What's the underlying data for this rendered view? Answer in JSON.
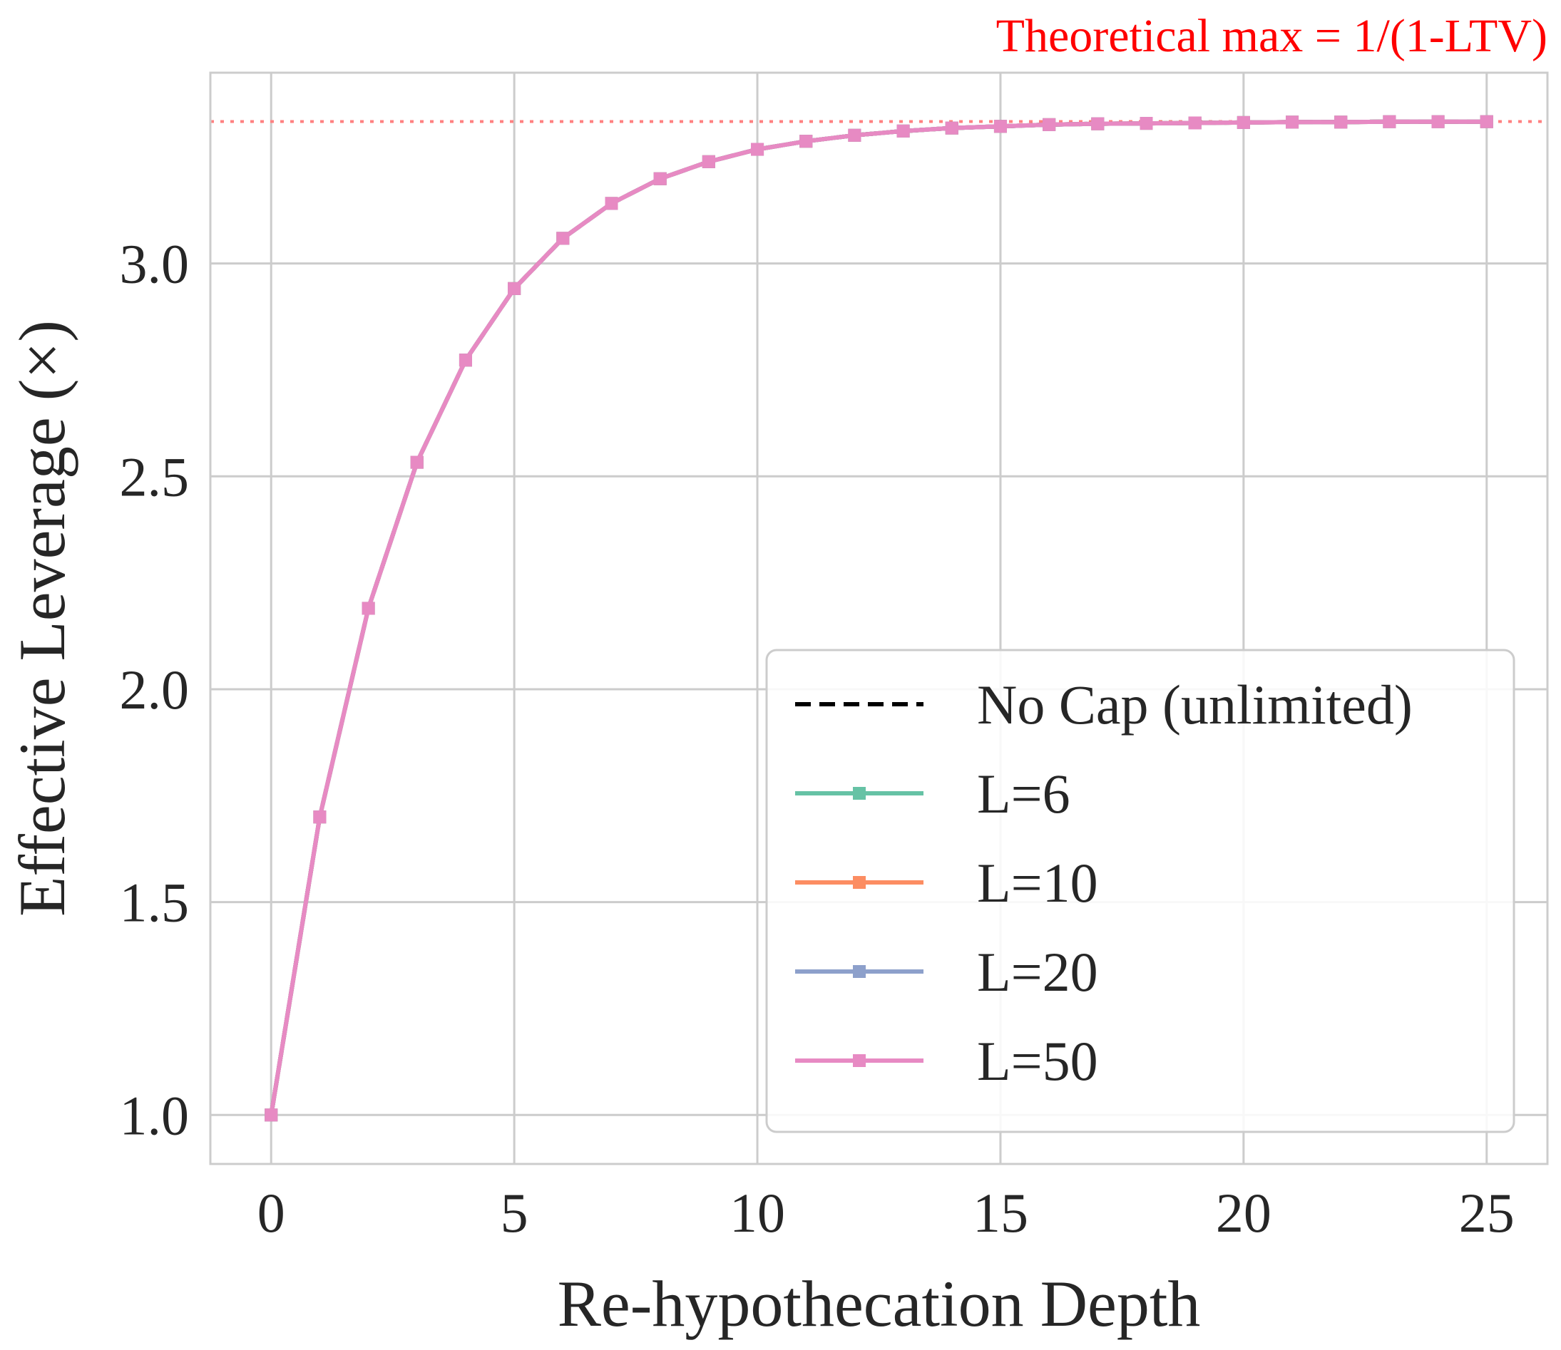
{
  "chart_data": {
    "type": "line",
    "xlabel": "Re-hypothecation Depth",
    "ylabel": "Effective Leverage (×)",
    "xlim": [
      -1.25,
      26.25
    ],
    "ylim": [
      0.885,
      3.448
    ],
    "xticks": [
      0,
      5,
      10,
      15,
      20,
      25
    ],
    "xtick_labels": [
      "0",
      "5",
      "10",
      "15",
      "20",
      "25"
    ],
    "yticks": [
      1.0,
      1.5,
      2.0,
      2.5,
      3.0
    ],
    "ytick_labels": [
      "1.0",
      "1.5",
      "2.0",
      "2.5",
      "3.0"
    ],
    "grid": true,
    "legend_position": "lower-right",
    "reference_line": {
      "y": 3.3333,
      "label": "Theoretical max = 1/(1-LTV)",
      "color": "#ff8080",
      "style": "dotted"
    },
    "x": [
      0,
      1,
      2,
      3,
      4,
      5,
      6,
      7,
      8,
      9,
      10,
      11,
      12,
      13,
      14,
      15,
      16,
      17,
      18,
      19,
      20,
      21,
      22,
      23,
      24,
      25
    ],
    "series": [
      {
        "name": "No Cap (unlimited)",
        "color": "#000000",
        "style": "dashed",
        "marker": "none",
        "values": [
          1.0,
          1.7,
          2.19,
          2.533,
          2.773,
          2.941,
          3.059,
          3.141,
          3.199,
          3.239,
          3.268,
          3.287,
          3.301,
          3.311,
          3.318,
          3.322,
          3.326,
          3.328,
          3.329,
          3.33,
          3.331,
          3.332,
          3.332,
          3.333,
          3.333,
          3.333
        ]
      },
      {
        "name": "L=6",
        "color": "#66c2a5",
        "style": "solid",
        "marker": "square",
        "values": [
          1.0,
          1.7,
          2.19,
          2.533,
          2.773,
          2.941,
          3.059,
          3.141,
          3.199,
          3.239,
          3.268,
          3.287,
          3.301,
          3.311,
          3.318,
          3.322,
          3.326,
          3.328,
          3.329,
          3.33,
          3.331,
          3.332,
          3.332,
          3.333,
          3.333,
          3.333
        ]
      },
      {
        "name": "L=10",
        "color": "#fc8d62",
        "style": "solid",
        "marker": "square",
        "values": [
          1.0,
          1.7,
          2.19,
          2.533,
          2.773,
          2.941,
          3.059,
          3.141,
          3.199,
          3.239,
          3.268,
          3.287,
          3.301,
          3.311,
          3.318,
          3.322,
          3.326,
          3.328,
          3.329,
          3.33,
          3.331,
          3.332,
          3.332,
          3.333,
          3.333,
          3.333
        ]
      },
      {
        "name": "L=20",
        "color": "#8da0cb",
        "style": "solid",
        "marker": "square",
        "values": [
          1.0,
          1.7,
          2.19,
          2.533,
          2.773,
          2.941,
          3.059,
          3.141,
          3.199,
          3.239,
          3.268,
          3.287,
          3.301,
          3.311,
          3.318,
          3.322,
          3.326,
          3.328,
          3.329,
          3.33,
          3.331,
          3.332,
          3.332,
          3.333,
          3.333,
          3.333
        ]
      },
      {
        "name": "L=50",
        "color": "#e78ac3",
        "style": "solid",
        "marker": "square",
        "values": [
          1.0,
          1.7,
          2.19,
          2.533,
          2.773,
          2.941,
          3.059,
          3.141,
          3.199,
          3.239,
          3.268,
          3.287,
          3.301,
          3.311,
          3.318,
          3.322,
          3.326,
          3.328,
          3.329,
          3.33,
          3.331,
          3.332,
          3.332,
          3.333,
          3.333,
          3.333
        ]
      }
    ]
  }
}
